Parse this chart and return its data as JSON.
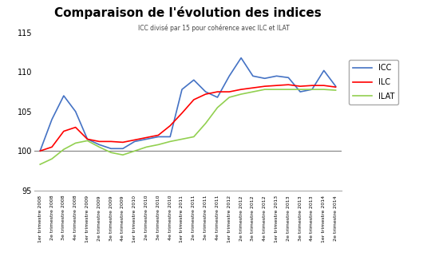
{
  "title": "Comparaison de l'évolution des indices",
  "subtitle": "ICC divisé par 15 pour cohérence avec ILC et ILAT",
  "ylim": [
    95,
    115
  ],
  "yticks": [
    95,
    100,
    105,
    110,
    115
  ],
  "hline": 100,
  "legend_labels": [
    "ICC",
    "ILC",
    "ILAT"
  ],
  "line_colors": [
    "#4472C4",
    "#FF0000",
    "#92D050"
  ],
  "x_labels": [
    "1er trimestre 2008",
    "2e trimestre 2008",
    "3e trimestre 2008",
    "4e trimestre 2008",
    "1er trimestre 2009",
    "2e trimestre 2009",
    "3e trimestre 2009",
    "4e trimestre 2009",
    "1er trimestre 2010",
    "2e trimestre 2010",
    "3e trimestre 2010",
    "4e trimestre 2010",
    "1er trimestre 2011",
    "2e trimestre 2011",
    "3e trimestre 2011",
    "4e trimestre 2011",
    "1er trimestre 2012",
    "2e trimestre 2012",
    "3e trimestre 2012",
    "4e trimestre 2012",
    "1er trimestre 2013",
    "2e trimestre 2013",
    "3e trimestre 2013",
    "4e trimestre 2013",
    "1er trimestre 2014",
    "2e trimestre 2014"
  ],
  "ICC": [
    100.0,
    104.0,
    107.0,
    105.0,
    101.5,
    100.8,
    100.3,
    100.3,
    101.2,
    101.5,
    101.8,
    101.8,
    107.8,
    109.0,
    107.5,
    106.8,
    109.5,
    111.8,
    109.5,
    109.2,
    109.5,
    109.3,
    107.5,
    107.8,
    110.2,
    108.2
  ],
  "ILC": [
    100.0,
    100.5,
    102.5,
    103.0,
    101.5,
    101.2,
    101.2,
    101.1,
    101.4,
    101.7,
    102.0,
    103.2,
    104.8,
    106.5,
    107.2,
    107.5,
    107.5,
    107.8,
    108.0,
    108.2,
    108.3,
    108.4,
    108.2,
    108.3,
    108.3,
    108.1
  ],
  "ILAT": [
    98.3,
    99.0,
    100.2,
    101.0,
    101.3,
    100.5,
    99.8,
    99.5,
    100.0,
    100.5,
    100.8,
    101.2,
    101.5,
    101.8,
    103.5,
    105.5,
    106.8,
    107.2,
    107.5,
    107.8,
    107.8,
    107.8,
    107.8,
    107.8,
    107.8,
    107.7
  ]
}
